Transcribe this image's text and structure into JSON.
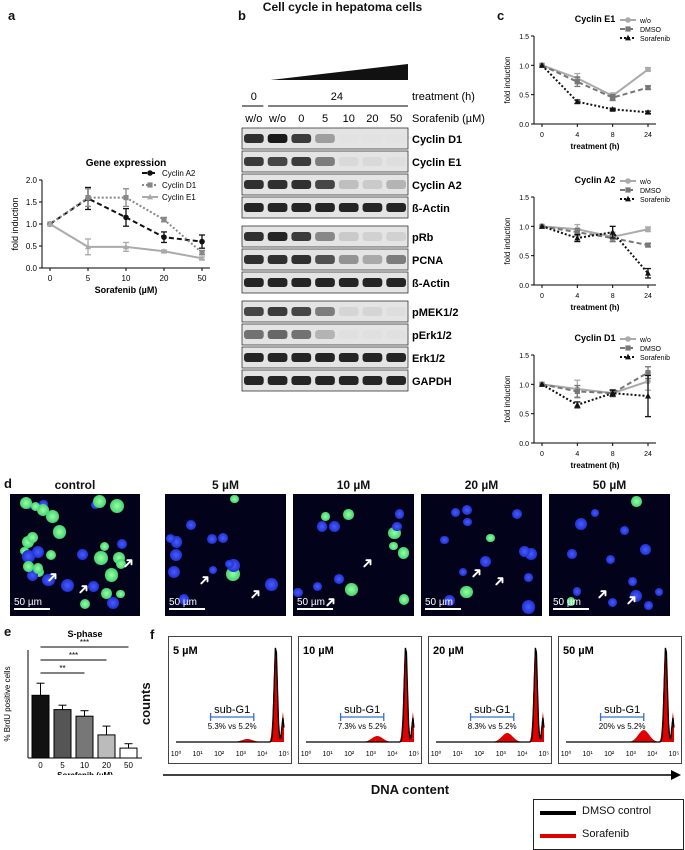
{
  "figure": {
    "title": "Cell cycle in hepatoma cells",
    "panel_labels": [
      "a",
      "b",
      "c",
      "d",
      "e",
      "f"
    ]
  },
  "colors": {
    "black": "#111111",
    "dark_gray": "#555555",
    "mid_gray": "#888888",
    "light_gray": "#aaaaaa",
    "red": "#e00000",
    "green": "#30e060",
    "blue": "#1e32ff"
  },
  "chart_data": [
    {
      "id": "a",
      "type": "line",
      "title": "Gene expression",
      "xlabel": "Sorafenib (µM)",
      "ylabel": "fold induction",
      "categories": [
        "0",
        "5",
        "10",
        "20",
        "50"
      ],
      "yticks": [
        "0.0",
        "0.5",
        "1.0",
        "1.5",
        "2.0"
      ],
      "ylim": [
        0,
        2.0
      ],
      "legend_position": "top-right",
      "series": [
        {
          "name": "Cyclin A2",
          "values": [
            1.0,
            1.58,
            1.15,
            0.7,
            0.6
          ],
          "errors": [
            0,
            0.25,
            0.2,
            0.12,
            0.15
          ],
          "color": "#111111",
          "style": "dashed",
          "marker": "circle"
        },
        {
          "name": "Cyclin D1",
          "values": [
            1.0,
            1.6,
            1.6,
            1.1,
            0.35
          ],
          "errors": [
            0,
            0.2,
            0.2,
            0.05,
            0.05
          ],
          "color": "#888888",
          "style": "dotted",
          "marker": "square"
        },
        {
          "name": "Cyclin E1",
          "values": [
            1.0,
            0.48,
            0.48,
            0.38,
            0.22
          ],
          "errors": [
            0,
            0.18,
            0.1,
            0.03,
            0.03
          ],
          "color": "#aaaaaa",
          "style": "solid",
          "marker": "triangle"
        }
      ]
    },
    {
      "id": "c1",
      "type": "line",
      "title": "Cyclin E1",
      "xlabel": "treatment (h)",
      "ylabel": "fold induction",
      "categories": [
        "0",
        "4",
        "8",
        "24"
      ],
      "yticks": [
        "0.0",
        "0.5",
        "1.0",
        "1.5"
      ],
      "ylim": [
        0,
        1.5
      ],
      "legend_position": "top-right",
      "series": [
        {
          "name": "w/o",
          "values": [
            1.0,
            0.78,
            0.48,
            0.93
          ],
          "errors": [
            0,
            0.08,
            0.05,
            0.03
          ],
          "color": "#aaaaaa",
          "style": "solid",
          "marker": "circle"
        },
        {
          "name": "DMSO",
          "values": [
            1.0,
            0.72,
            0.45,
            0.62
          ],
          "errors": [
            0,
            0.08,
            0.05,
            0.03
          ],
          "color": "#777777",
          "style": "dashed",
          "marker": "square"
        },
        {
          "name": "Sorafenib",
          "values": [
            1.0,
            0.38,
            0.25,
            0.2
          ],
          "errors": [
            0,
            0.03,
            0.02,
            0.02
          ],
          "color": "#111111",
          "style": "dotted",
          "marker": "triangle"
        }
      ]
    },
    {
      "id": "c2",
      "type": "line",
      "title": "Cyclin A2",
      "xlabel": "treatment (h)",
      "ylabel": "fold induction",
      "categories": [
        "0",
        "4",
        "8",
        "24"
      ],
      "yticks": [
        "0.0",
        "0.5",
        "1.0",
        "1.5"
      ],
      "ylim": [
        0,
        1.5
      ],
      "legend_position": "top-right",
      "series": [
        {
          "name": "w/o",
          "values": [
            1.0,
            0.95,
            0.82,
            0.95
          ],
          "errors": [
            0,
            0.08,
            0.08,
            0.04
          ],
          "color": "#aaaaaa",
          "style": "solid",
          "marker": "circle"
        },
        {
          "name": "DMSO",
          "values": [
            1.0,
            0.9,
            0.8,
            0.68
          ],
          "errors": [
            0,
            0.06,
            0.06,
            0.03
          ],
          "color": "#777777",
          "style": "dashed",
          "marker": "square"
        },
        {
          "name": "Sorafenib",
          "values": [
            1.0,
            0.8,
            0.9,
            0.2
          ],
          "errors": [
            0,
            0.06,
            0.1,
            0.08
          ],
          "color": "#111111",
          "style": "dotted",
          "marker": "triangle"
        }
      ]
    },
    {
      "id": "c3",
      "type": "line",
      "title": "Cyclin D1",
      "xlabel": "treatment (h)",
      "ylabel": "fold induction",
      "categories": [
        "0",
        "4",
        "8",
        "24"
      ],
      "yticks": [
        "0.0",
        "0.5",
        "1.0",
        "1.5"
      ],
      "ylim": [
        0,
        1.5
      ],
      "legend_position": "top-right",
      "series": [
        {
          "name": "w/o",
          "values": [
            1.0,
            0.92,
            0.85,
            1.05
          ],
          "errors": [
            0,
            0.15,
            0.05,
            0.15
          ],
          "color": "#aaaaaa",
          "style": "solid",
          "marker": "circle"
        },
        {
          "name": "DMSO",
          "values": [
            1.0,
            0.88,
            0.85,
            1.2
          ],
          "errors": [
            0,
            0.1,
            0.06,
            0.1
          ],
          "color": "#777777",
          "style": "dashed",
          "marker": "square"
        },
        {
          "name": "Sorafenib",
          "values": [
            1.0,
            0.65,
            0.85,
            0.8
          ],
          "errors": [
            0,
            0.05,
            0.05,
            0.35
          ],
          "color": "#111111",
          "style": "dotted",
          "marker": "triangle"
        }
      ]
    },
    {
      "id": "e",
      "type": "bar",
      "title": "S-phase",
      "xlabel": "Sorafenib (µM)",
      "ylabel": "% BrdU positive cells",
      "categories": [
        "0",
        "5",
        "10",
        "20",
        "50"
      ],
      "values": [
        57,
        44,
        38,
        21,
        9
      ],
      "errors": [
        11,
        4,
        5,
        8,
        4
      ],
      "bar_colors": [
        "#111111",
        "#555555",
        "#777777",
        "#bbbbbb",
        "#ffffff"
      ],
      "ylim": [
        0,
        80
      ],
      "significance": [
        "***",
        "***",
        "**"
      ]
    }
  ],
  "blot": {
    "header_time_label": "treatment (h)",
    "header_dose_label": "Sorafenib (µM)",
    "time_zero": "0",
    "time_24": "24",
    "lanes": [
      "w/o",
      "w/o",
      "0",
      "5",
      "10",
      "20",
      "50"
    ],
    "groups": [
      {
        "rows": [
          {
            "label": "Cyclin D1",
            "intensity": [
              0.85,
              0.95,
              0.8,
              0.35,
              0.04,
              0.04,
              0.04
            ]
          },
          {
            "label": "Cyclin E1",
            "intensity": [
              0.8,
              0.75,
              0.8,
              0.5,
              0.08,
              0.08,
              0.06
            ]
          },
          {
            "label": "Cyclin A2",
            "intensity": [
              0.85,
              0.85,
              0.85,
              0.75,
              0.2,
              0.15,
              0.25
            ]
          },
          {
            "label": "ß-Actin",
            "intensity": [
              0.9,
              0.9,
              0.9,
              0.9,
              0.9,
              0.9,
              0.9
            ]
          }
        ]
      },
      {
        "rows": [
          {
            "label": "pRb",
            "intensity": [
              0.85,
              0.9,
              0.8,
              0.45,
              0.15,
              0.12,
              0.12
            ]
          },
          {
            "label": "PCNA",
            "intensity": [
              0.85,
              0.85,
              0.85,
              0.7,
              0.4,
              0.3,
              0.5
            ]
          },
          {
            "label": "ß-Actin",
            "intensity": [
              0.9,
              0.9,
              0.9,
              0.9,
              0.9,
              0.9,
              0.9
            ]
          }
        ]
      },
      {
        "rows": [
          {
            "label": "pMEK1/2",
            "intensity": [
              0.75,
              0.8,
              0.75,
              0.5,
              0.1,
              0.1,
              0.06
            ]
          },
          {
            "label": "pErk1/2",
            "intensity": [
              0.55,
              0.6,
              0.55,
              0.25,
              0.05,
              0.05,
              0.05
            ]
          },
          {
            "label": "Erk1/2",
            "intensity": [
              0.9,
              0.9,
              0.9,
              0.9,
              0.9,
              0.9,
              0.9
            ]
          },
          {
            "label": "GAPDH",
            "intensity": [
              0.9,
              0.9,
              0.9,
              0.9,
              0.9,
              0.9,
              0.9
            ]
          }
        ]
      }
    ]
  },
  "microscopy": {
    "scale_bar": "50 µm",
    "panels": [
      {
        "title": "control",
        "green_fraction": 0.6
      },
      {
        "title": "5 µM",
        "green_fraction": 0.3
      },
      {
        "title": "10 µM",
        "green_fraction": 0.3
      },
      {
        "title": "20 µM",
        "green_fraction": 0.1
      },
      {
        "title": "50 µM",
        "green_fraction": 0.05
      }
    ]
  },
  "flow": {
    "ylabel": "counts",
    "xlabel": "DNA content",
    "gate_label": "sub-G1",
    "xticks": [
      "10⁰",
      "10¹",
      "10²",
      "10³",
      "10⁴",
      "10⁵"
    ],
    "panels": [
      {
        "title": "5 µM",
        "subg1": "5.3% vs 5.2%"
      },
      {
        "title": "10 µM",
        "subg1": "7.3% vs 5.2%"
      },
      {
        "title": "20 µM",
        "subg1": "8.3% vs 5.2%"
      },
      {
        "title": "50 µM",
        "subg1": "20% vs 5.2%"
      }
    ],
    "legend": [
      {
        "name": "DMSO control",
        "color": "#000000"
      },
      {
        "name": "Sorafenib",
        "color": "#e00000"
      }
    ]
  }
}
